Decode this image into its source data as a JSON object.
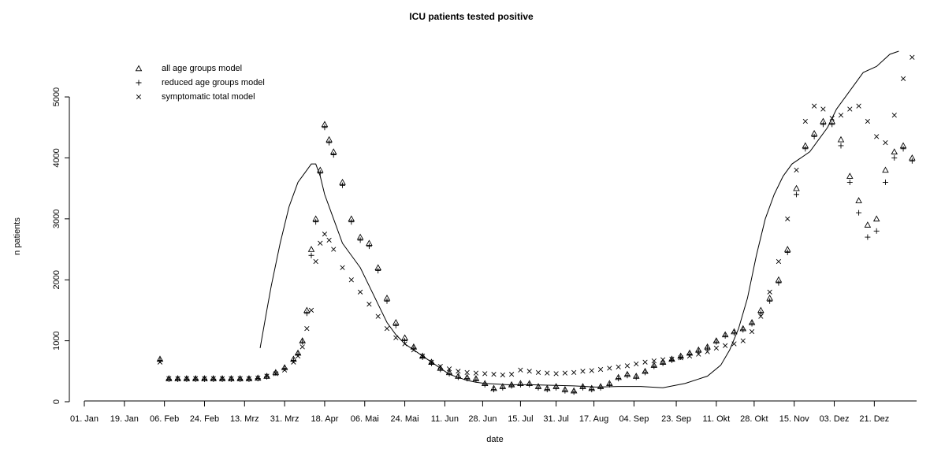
{
  "chart_data": {
    "type": "scatter",
    "title": "ICU patients tested positive",
    "xlabel": "date",
    "ylabel": "n patients",
    "xlim": [
      0,
      374
    ],
    "ylim": [
      0,
      5750
    ],
    "xticks": [
      {
        "value": 0,
        "label": "01. Jan"
      },
      {
        "value": 18,
        "label": "19. Jan"
      },
      {
        "value": 36,
        "label": "06. Feb"
      },
      {
        "value": 54,
        "label": "24. Feb"
      },
      {
        "value": 72,
        "label": "13. Mrz"
      },
      {
        "value": 90,
        "label": "31. Mrz"
      },
      {
        "value": 108,
        "label": "18. Apr"
      },
      {
        "value": 126,
        "label": "06. Mai"
      },
      {
        "value": 144,
        "label": "24. Mai"
      },
      {
        "value": 162,
        "label": "11. Jun"
      },
      {
        "value": 179,
        "label": "28. Jun"
      },
      {
        "value": 196,
        "label": "15. Jul"
      },
      {
        "value": 212,
        "label": "31. Jul"
      },
      {
        "value": 229,
        "label": "17. Aug"
      },
      {
        "value": 247,
        "label": "04. Sep"
      },
      {
        "value": 266,
        "label": "23. Sep"
      },
      {
        "value": 284,
        "label": "11. Okt"
      },
      {
        "value": 301,
        "label": "28. Okt"
      },
      {
        "value": 319,
        "label": "15. Nov"
      },
      {
        "value": 337,
        "label": "03. Dez"
      },
      {
        "value": 355,
        "label": "21. Dez"
      }
    ],
    "yticks": [
      0,
      1000,
      2000,
      3000,
      4000,
      5000
    ],
    "legend": "top-left",
    "x": [
      34,
      38,
      42,
      46,
      50,
      54,
      58,
      62,
      66,
      70,
      74,
      78,
      82,
      86,
      90,
      94,
      96,
      98,
      100,
      102,
      104,
      106,
      108,
      110,
      112,
      116,
      120,
      124,
      128,
      132,
      136,
      140,
      144,
      148,
      152,
      156,
      160,
      164,
      168,
      172,
      176,
      180,
      184,
      188,
      192,
      196,
      200,
      204,
      208,
      212,
      216,
      220,
      224,
      228,
      232,
      236,
      240,
      244,
      248,
      252,
      256,
      260,
      264,
      268,
      272,
      276,
      280,
      284,
      288,
      292,
      296,
      300,
      304,
      308,
      312,
      316,
      320,
      324,
      328,
      332,
      336,
      340,
      344,
      348,
      352,
      356,
      360,
      364,
      368,
      372
    ],
    "series": [
      {
        "name": "all age groups model",
        "marker": "triangle",
        "color": "#000000",
        "values": [
          700,
          380,
          380,
          380,
          380,
          380,
          380,
          380,
          380,
          380,
          380,
          390,
          420,
          480,
          560,
          700,
          800,
          1000,
          1500,
          2500,
          3000,
          3800,
          4550,
          4300,
          4100,
          3600,
          3000,
          2700,
          2600,
          2200,
          1700,
          1300,
          1050,
          900,
          750,
          650,
          550,
          480,
          420,
          400,
          380,
          300,
          220,
          250,
          280,
          300,
          300,
          250,
          220,
          250,
          200,
          180,
          250,
          220,
          250,
          300,
          400,
          450,
          420,
          500,
          600,
          650,
          700,
          750,
          800,
          850,
          900,
          1000,
          1100,
          1150,
          1200,
          1300,
          1500,
          1700,
          2000,
          2500,
          3500,
          4200,
          4400,
          4600,
          4600,
          4300,
          3700,
          3300,
          2900,
          3000,
          3800,
          4100,
          4200,
          4000
        ]
      },
      {
        "name": "reduced age groups model",
        "marker": "plus",
        "color": "#000000",
        "values": [
          680,
          370,
          370,
          370,
          370,
          370,
          370,
          370,
          370,
          370,
          370,
          380,
          410,
          470,
          550,
          680,
          780,
          980,
          1450,
          2400,
          2950,
          3750,
          4500,
          4250,
          4050,
          3550,
          2950,
          2650,
          2550,
          2150,
          1650,
          1250,
          1000,
          880,
          730,
          630,
          530,
          460,
          400,
          380,
          360,
          280,
          200,
          230,
          260,
          280,
          280,
          230,
          200,
          230,
          180,
          160,
          230,
          200,
          230,
          280,
          380,
          430,
          400,
          480,
          580,
          630,
          680,
          730,
          780,
          830,
          880,
          980,
          1080,
          1130,
          1180,
          1280,
          1450,
          1650,
          1950,
          2450,
          3400,
          4150,
          4350,
          4550,
          4550,
          4200,
          3600,
          3100,
          2700,
          2800,
          3600,
          4000,
          4150,
          3950
        ]
      },
      {
        "name": "symptomatic total model",
        "marker": "cross",
        "color": "#000000",
        "values": [
          650,
          380,
          380,
          380,
          380,
          380,
          380,
          380,
          380,
          380,
          380,
          390,
          420,
          460,
          520,
          650,
          750,
          900,
          1200,
          1500,
          2300,
          2600,
          2750,
          2650,
          2500,
          2200,
          2000,
          1800,
          1600,
          1400,
          1200,
          1050,
          950,
          850,
          750,
          650,
          580,
          540,
          500,
          480,
          470,
          460,
          450,
          440,
          450,
          520,
          500,
          480,
          470,
          460,
          470,
          480,
          500,
          510,
          530,
          550,
          570,
          590,
          620,
          650,
          670,
          690,
          700,
          720,
          750,
          780,
          820,
          880,
          920,
          950,
          1000,
          1150,
          1400,
          1800,
          2300,
          3000,
          3800,
          4600,
          4850,
          4800,
          4650,
          4700,
          4800,
          4850,
          4600,
          4350,
          4250,
          4700,
          5300,
          5650
        ]
      },
      {
        "type": "line",
        "color": "#000000",
        "x": [
          79,
          82,
          84,
          88,
          92,
          96,
          100,
          102,
          104,
          106,
          108,
          112,
          116,
          120,
          124,
          128,
          132,
          136,
          140,
          144,
          148,
          152,
          156,
          160,
          164,
          168,
          172,
          176,
          180,
          190,
          200,
          210,
          220,
          230,
          240,
          250,
          260,
          270,
          280,
          286,
          290,
          294,
          298,
          302,
          306,
          310,
          314,
          318,
          322,
          326,
          330,
          334,
          338,
          342,
          346,
          350,
          356,
          362,
          366
        ],
        "values": [
          880,
          1500,
          1900,
          2600,
          3200,
          3600,
          3800,
          3900,
          3900,
          3700,
          3400,
          3000,
          2600,
          2400,
          2200,
          1900,
          1600,
          1300,
          1100,
          950,
          850,
          750,
          650,
          550,
          450,
          400,
          350,
          320,
          300,
          280,
          280,
          270,
          260,
          240,
          250,
          250,
          230,
          300,
          420,
          600,
          850,
          1200,
          1700,
          2400,
          3000,
          3400,
          3700,
          3900,
          4000,
          4100,
          4300,
          4500,
          4800,
          5000,
          5200,
          5400,
          5500,
          5700,
          5750
        ]
      }
    ]
  }
}
